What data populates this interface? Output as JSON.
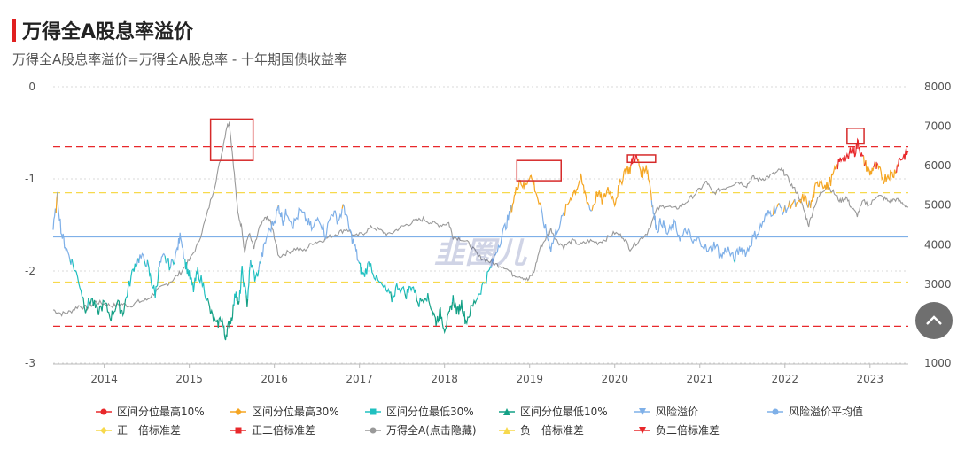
{
  "header": {
    "title": "万得全A股息率溢价",
    "subtitle": "万得全A股息率溢价=万得全A股息率 - 十年期国债收益率"
  },
  "watermark": "韭圈儿",
  "legend": [
    {
      "label": "区间分位最高10%",
      "color": "#e8282b",
      "marker": "circle"
    },
    {
      "label": "区间分位最高30%",
      "color": "#f5a623",
      "marker": "diamond"
    },
    {
      "label": "区间分位最低30%",
      "color": "#20c0c0",
      "marker": "square"
    },
    {
      "label": "区间分位最低10%",
      "color": "#14a085",
      "marker": "triangle"
    },
    {
      "label": "风险溢价",
      "color": "#7fb0e8",
      "marker": "triangle-down"
    },
    {
      "label": "风险溢价平均值",
      "color": "#7fb0e8",
      "marker": "circle"
    },
    {
      "label": "正一倍标准差",
      "color": "#f7d94c",
      "marker": "diamond"
    },
    {
      "label": "正二倍标准差",
      "color": "#e8282b",
      "marker": "square"
    },
    {
      "label": "万得全A(点击隐藏)",
      "color": "#999999",
      "marker": "circle"
    },
    {
      "label": "负一倍标准差",
      "color": "#f7d94c",
      "marker": "triangle"
    },
    {
      "label": "负二倍标准差",
      "color": "#e8282b",
      "marker": "triangle-down"
    }
  ],
  "chart_data": {
    "type": "line",
    "left_axis": {
      "ticks": [
        "0",
        "-1",
        "-2",
        "-3"
      ],
      "range": [
        -3,
        0
      ]
    },
    "right_axis": {
      "ticks": [
        "8000",
        "7000",
        "6000",
        "5000",
        "4000",
        "3000",
        "2000",
        "1000"
      ],
      "range": [
        1000,
        8000
      ]
    },
    "x_ticks": [
      "2014",
      "2015",
      "2016",
      "2017",
      "2018",
      "2019",
      "2020",
      "2021",
      "2022",
      "2023"
    ],
    "x_range": [
      2013.4,
      2023.45
    ],
    "reference_lines": {
      "mean": -1.63,
      "plus_1sd": -1.15,
      "plus_2sd": -0.65,
      "minus_1sd": -2.12,
      "minus_2sd": -2.6
    },
    "percentile_thresholds": {
      "top10": -0.85,
      "top30": -1.3,
      "bottom30": -1.9,
      "bottom10": -2.3
    },
    "colors": {
      "risk_premium": "#7fb0e8",
      "mean": "#7fb0e8",
      "sd1": "#f7d94c",
      "sd2": "#e8282b",
      "top10": "#e8282b",
      "top30": "#f5a623",
      "bottom30": "#20c0c0",
      "bottom10": "#14a085",
      "wind_a": "#999999",
      "grid": "#d8d8d8",
      "highlight_box": "#d62a2a"
    },
    "risk_premium": [
      [
        2013.4,
        -1.55
      ],
      [
        2013.45,
        -1.2
      ],
      [
        2013.5,
        -1.6
      ],
      [
        2013.55,
        -1.75
      ],
      [
        2013.62,
        -1.9
      ],
      [
        2013.7,
        -2.1
      ],
      [
        2013.78,
        -2.4
      ],
      [
        2013.85,
        -2.3
      ],
      [
        2013.92,
        -2.45
      ],
      [
        2014.0,
        -2.35
      ],
      [
        2014.08,
        -2.5
      ],
      [
        2014.15,
        -2.35
      ],
      [
        2014.22,
        -2.45
      ],
      [
        2014.28,
        -2.2
      ],
      [
        2014.35,
        -1.95
      ],
      [
        2014.42,
        -1.85
      ],
      [
        2014.5,
        -1.9
      ],
      [
        2014.55,
        -2.1
      ],
      [
        2014.6,
        -2.25
      ],
      [
        2014.65,
        -1.95
      ],
      [
        2014.7,
        -1.85
      ],
      [
        2014.78,
        -1.95
      ],
      [
        2014.85,
        -1.8
      ],
      [
        2014.9,
        -1.6
      ],
      [
        2014.95,
        -1.9
      ],
      [
        2015.0,
        -2.05
      ],
      [
        2015.05,
        -2.2
      ],
      [
        2015.1,
        -2.0
      ],
      [
        2015.18,
        -2.2
      ],
      [
        2015.25,
        -2.45
      ],
      [
        2015.32,
        -2.6
      ],
      [
        2015.38,
        -2.5
      ],
      [
        2015.42,
        -2.72
      ],
      [
        2015.46,
        -2.6
      ],
      [
        2015.5,
        -2.5
      ],
      [
        2015.55,
        -2.2
      ],
      [
        2015.58,
        -2.4
      ],
      [
        2015.62,
        -2.0
      ],
      [
        2015.68,
        -2.35
      ],
      [
        2015.72,
        -1.9
      ],
      [
        2015.78,
        -2.1
      ],
      [
        2015.85,
        -1.85
      ],
      [
        2015.92,
        -1.6
      ],
      [
        2016.0,
        -1.45
      ],
      [
        2016.05,
        -1.3
      ],
      [
        2016.1,
        -1.45
      ],
      [
        2016.15,
        -1.35
      ],
      [
        2016.22,
        -1.5
      ],
      [
        2016.3,
        -1.35
      ],
      [
        2016.38,
        -1.45
      ],
      [
        2016.45,
        -1.55
      ],
      [
        2016.52,
        -1.4
      ],
      [
        2016.6,
        -1.6
      ],
      [
        2016.68,
        -1.35
      ],
      [
        2016.75,
        -1.45
      ],
      [
        2016.82,
        -1.3
      ],
      [
        2016.88,
        -1.55
      ],
      [
        2016.95,
        -1.75
      ],
      [
        2017.0,
        -1.95
      ],
      [
        2017.05,
        -2.05
      ],
      [
        2017.12,
        -1.9
      ],
      [
        2017.2,
        -2.1
      ],
      [
        2017.3,
        -2.2
      ],
      [
        2017.38,
        -2.3
      ],
      [
        2017.45,
        -2.15
      ],
      [
        2017.55,
        -2.25
      ],
      [
        2017.62,
        -2.15
      ],
      [
        2017.7,
        -2.35
      ],
      [
        2017.78,
        -2.25
      ],
      [
        2017.85,
        -2.4
      ],
      [
        2017.9,
        -2.55
      ],
      [
        2017.95,
        -2.45
      ],
      [
        2018.0,
        -2.62
      ],
      [
        2018.05,
        -2.5
      ],
      [
        2018.1,
        -2.3
      ],
      [
        2018.15,
        -2.45
      ],
      [
        2018.2,
        -2.35
      ],
      [
        2018.25,
        -2.55
      ],
      [
        2018.32,
        -2.4
      ],
      [
        2018.4,
        -2.25
      ],
      [
        2018.48,
        -2.1
      ],
      [
        2018.55,
        -1.95
      ],
      [
        2018.62,
        -1.75
      ],
      [
        2018.7,
        -1.55
      ],
      [
        2018.76,
        -1.4
      ],
      [
        2018.82,
        -1.2
      ],
      [
        2018.88,
        -1.0
      ],
      [
        2018.94,
        -1.1
      ],
      [
        2019.0,
        -0.95
      ],
      [
        2019.05,
        -1.05
      ],
      [
        2019.12,
        -1.3
      ],
      [
        2019.2,
        -1.6
      ],
      [
        2019.25,
        -1.75
      ],
      [
        2019.32,
        -1.55
      ],
      [
        2019.4,
        -1.4
      ],
      [
        2019.48,
        -1.2
      ],
      [
        2019.55,
        -1.1
      ],
      [
        2019.6,
        -1.0
      ],
      [
        2019.65,
        -1.15
      ],
      [
        2019.72,
        -1.35
      ],
      [
        2019.8,
        -1.15
      ],
      [
        2019.86,
        -1.25
      ],
      [
        2019.92,
        -1.1
      ],
      [
        2020.0,
        -1.25
      ],
      [
        2020.05,
        -1.1
      ],
      [
        2020.12,
        -0.9
      ],
      [
        2020.18,
        -0.9
      ],
      [
        2020.22,
        -0.75
      ],
      [
        2020.27,
        -0.8
      ],
      [
        2020.32,
        -0.95
      ],
      [
        2020.37,
        -0.85
      ],
      [
        2020.42,
        -1.1
      ],
      [
        2020.46,
        -1.4
      ],
      [
        2020.5,
        -1.55
      ],
      [
        2020.55,
        -1.45
      ],
      [
        2020.62,
        -1.6
      ],
      [
        2020.7,
        -1.5
      ],
      [
        2020.78,
        -1.65
      ],
      [
        2020.85,
        -1.55
      ],
      [
        2020.92,
        -1.7
      ],
      [
        2021.0,
        -1.65
      ],
      [
        2021.1,
        -1.8
      ],
      [
        2021.18,
        -1.7
      ],
      [
        2021.25,
        -1.85
      ],
      [
        2021.32,
        -1.75
      ],
      [
        2021.4,
        -1.88
      ],
      [
        2021.48,
        -1.75
      ],
      [
        2021.55,
        -1.8
      ],
      [
        2021.62,
        -1.65
      ],
      [
        2021.7,
        -1.55
      ],
      [
        2021.78,
        -1.4
      ],
      [
        2021.85,
        -1.35
      ],
      [
        2021.92,
        -1.3
      ],
      [
        2022.0,
        -1.35
      ],
      [
        2022.08,
        -1.25
      ],
      [
        2022.15,
        -1.3
      ],
      [
        2022.22,
        -1.2
      ],
      [
        2022.3,
        -1.3
      ],
      [
        2022.36,
        -1.1
      ],
      [
        2022.42,
        -1.0
      ],
      [
        2022.48,
        -1.1
      ],
      [
        2022.55,
        -1.0
      ],
      [
        2022.62,
        -0.85
      ],
      [
        2022.68,
        -0.75
      ],
      [
        2022.74,
        -0.8
      ],
      [
        2022.78,
        -0.65
      ],
      [
        2022.82,
        -0.72
      ],
      [
        2022.86,
        -0.6
      ],
      [
        2022.9,
        -0.75
      ],
      [
        2022.95,
        -0.85
      ],
      [
        2023.0,
        -0.95
      ],
      [
        2023.05,
        -0.85
      ],
      [
        2023.1,
        -0.9
      ],
      [
        2023.16,
        -1.0
      ],
      [
        2023.22,
        -0.95
      ],
      [
        2023.28,
        -0.95
      ],
      [
        2023.34,
        -0.8
      ],
      [
        2023.4,
        -0.75
      ],
      [
        2023.45,
        -0.7
      ]
    ],
    "wind_a": [
      [
        2013.4,
        2350
      ],
      [
        2013.5,
        2250
      ],
      [
        2013.6,
        2300
      ],
      [
        2013.7,
        2450
      ],
      [
        2013.8,
        2400
      ],
      [
        2013.9,
        2550
      ],
      [
        2014.0,
        2500
      ],
      [
        2014.1,
        2450
      ],
      [
        2014.2,
        2500
      ],
      [
        2014.3,
        2450
      ],
      [
        2014.4,
        2550
      ],
      [
        2014.5,
        2600
      ],
      [
        2014.6,
        2800
      ],
      [
        2014.7,
        2950
      ],
      [
        2014.8,
        3100
      ],
      [
        2014.9,
        3300
      ],
      [
        2015.0,
        3600
      ],
      [
        2015.1,
        4000
      ],
      [
        2015.2,
        4700
      ],
      [
        2015.3,
        5500
      ],
      [
        2015.38,
        6300
      ],
      [
        2015.44,
        7000
      ],
      [
        2015.47,
        7100
      ],
      [
        2015.52,
        6000
      ],
      [
        2015.57,
        4800
      ],
      [
        2015.62,
        4400
      ],
      [
        2015.65,
        3800
      ],
      [
        2015.7,
        4300
      ],
      [
        2015.76,
        3900
      ],
      [
        2015.82,
        4400
      ],
      [
        2015.9,
        4700
      ],
      [
        2015.95,
        4600
      ],
      [
        2016.0,
        4200
      ],
      [
        2016.05,
        3700
      ],
      [
        2016.15,
        3800
      ],
      [
        2016.25,
        3900
      ],
      [
        2016.35,
        3850
      ],
      [
        2016.45,
        4050
      ],
      [
        2016.55,
        4100
      ],
      [
        2016.65,
        4200
      ],
      [
        2016.75,
        4300
      ],
      [
        2016.85,
        4400
      ],
      [
        2016.95,
        4200
      ],
      [
        2017.05,
        4300
      ],
      [
        2017.15,
        4450
      ],
      [
        2017.25,
        4350
      ],
      [
        2017.35,
        4250
      ],
      [
        2017.45,
        4400
      ],
      [
        2017.55,
        4500
      ],
      [
        2017.65,
        4600
      ],
      [
        2017.75,
        4650
      ],
      [
        2017.85,
        4550
      ],
      [
        2017.95,
        4500
      ],
      [
        2018.05,
        4550
      ],
      [
        2018.1,
        4200
      ],
      [
        2018.2,
        4150
      ],
      [
        2018.3,
        4000
      ],
      [
        2018.4,
        3700
      ],
      [
        2018.5,
        3600
      ],
      [
        2018.6,
        3500
      ],
      [
        2018.7,
        3450
      ],
      [
        2018.8,
        3250
      ],
      [
        2018.9,
        3200
      ],
      [
        2018.98,
        3100
      ],
      [
        2019.05,
        3300
      ],
      [
        2019.12,
        3900
      ],
      [
        2019.2,
        4200
      ],
      [
        2019.25,
        4400
      ],
      [
        2019.32,
        4100
      ],
      [
        2019.4,
        3950
      ],
      [
        2019.5,
        4100
      ],
      [
        2019.6,
        4000
      ],
      [
        2019.7,
        4100
      ],
      [
        2019.8,
        4050
      ],
      [
        2019.9,
        4150
      ],
      [
        2020.0,
        4300
      ],
      [
        2020.1,
        4200
      ],
      [
        2020.18,
        3900
      ],
      [
        2020.28,
        4100
      ],
      [
        2020.38,
        4300
      ],
      [
        2020.5,
        4900
      ],
      [
        2020.6,
        5000
      ],
      [
        2020.7,
        4900
      ],
      [
        2020.8,
        5000
      ],
      [
        2020.9,
        5200
      ],
      [
        2021.0,
        5400
      ],
      [
        2021.08,
        5600
      ],
      [
        2021.15,
        5300
      ],
      [
        2021.25,
        5400
      ],
      [
        2021.35,
        5500
      ],
      [
        2021.45,
        5600
      ],
      [
        2021.55,
        5500
      ],
      [
        2021.62,
        5700
      ],
      [
        2021.7,
        5650
      ],
      [
        2021.78,
        5700
      ],
      [
        2021.88,
        5800
      ],
      [
        2021.95,
        5900
      ],
      [
        2022.0,
        5800
      ],
      [
        2022.08,
        5500
      ],
      [
        2022.15,
        5300
      ],
      [
        2022.22,
        4900
      ],
      [
        2022.28,
        4500
      ],
      [
        2022.35,
        5000
      ],
      [
        2022.42,
        5300
      ],
      [
        2022.5,
        5500
      ],
      [
        2022.58,
        5300
      ],
      [
        2022.65,
        5100
      ],
      [
        2022.72,
        5200
      ],
      [
        2022.78,
        4950
      ],
      [
        2022.85,
        4750
      ],
      [
        2022.92,
        5100
      ],
      [
        2023.0,
        5000
      ],
      [
        2023.08,
        5250
      ],
      [
        2023.15,
        5200
      ],
      [
        2023.22,
        5100
      ],
      [
        2023.3,
        5150
      ],
      [
        2023.38,
        5050
      ],
      [
        2023.45,
        4950
      ]
    ],
    "highlight_boxes": [
      {
        "x0": 2015.25,
        "x1": 2015.75,
        "y0": -0.35,
        "y1": -0.8
      },
      {
        "x0": 2018.85,
        "x1": 2019.37,
        "y0": -0.8,
        "y1": -1.02
      },
      {
        "x0": 2020.15,
        "x1": 2020.48,
        "y0": -0.74,
        "y1": -0.82
      },
      {
        "x0": 2022.73,
        "x1": 2022.93,
        "y0": -0.45,
        "y1": -0.62
      }
    ]
  }
}
